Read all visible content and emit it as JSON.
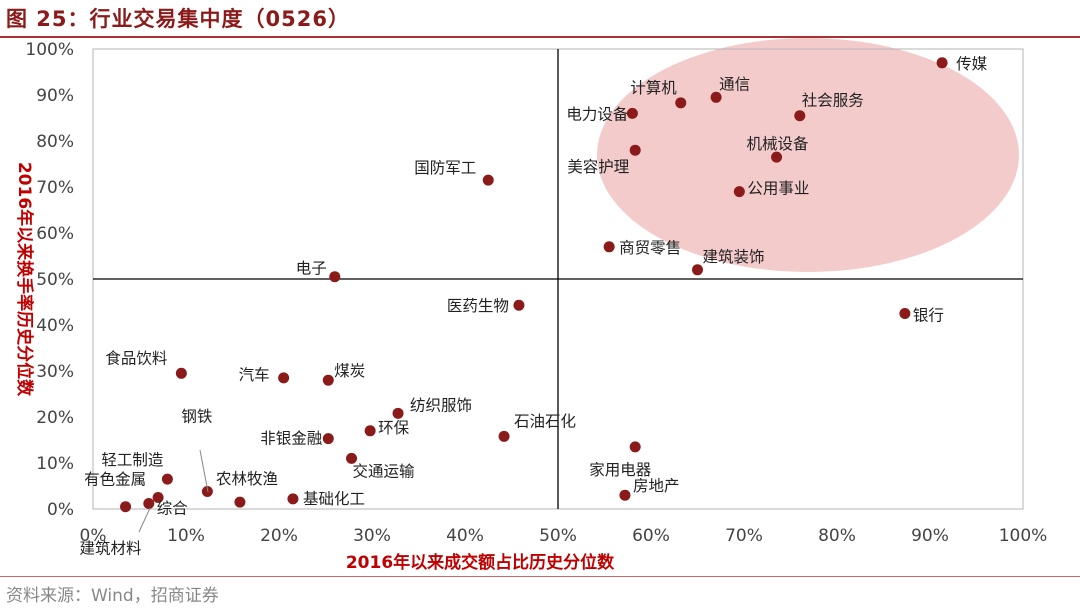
{
  "figure": {
    "title": "图 25：行业交易集中度（0526）",
    "source": "资料来源：Wind，招商证券",
    "highlight_color": "#f2c2c2",
    "point_color": "#8b1a1a",
    "axis_label_color": "#c00000"
  },
  "chart_data": {
    "type": "scatter",
    "xlabel": "2016年以来成交额占比历史分位数",
    "ylabel": "2016年以来换手率历史分位数",
    "xlim": [
      0,
      100
    ],
    "ylim": [
      0,
      100
    ],
    "x_ticks": [
      "0%",
      "10%",
      "20%",
      "30%",
      "40%",
      "50%",
      "60%",
      "70%",
      "80%",
      "90%",
      "100%"
    ],
    "y_ticks": [
      "0%",
      "10%",
      "20%",
      "30%",
      "40%",
      "50%",
      "60%",
      "70%",
      "80%",
      "90%",
      "100%"
    ],
    "quadrant_divider": {
      "x": 50,
      "y": 50
    },
    "grid": false,
    "points": [
      {
        "name": "传媒",
        "x": 91.3,
        "y": 97.0
      },
      {
        "name": "通信",
        "x": 67.0,
        "y": 89.5
      },
      {
        "name": "计算机",
        "x": 63.2,
        "y": 88.3
      },
      {
        "name": "电力设备",
        "x": 58.0,
        "y": 86.0
      },
      {
        "name": "社会服务",
        "x": 76.0,
        "y": 85.5
      },
      {
        "name": "美容护理",
        "x": 58.3,
        "y": 78.0
      },
      {
        "name": "机械设备",
        "x": 73.5,
        "y": 76.5
      },
      {
        "name": "国防军工",
        "x": 42.5,
        "y": 71.5
      },
      {
        "name": "公用事业",
        "x": 69.5,
        "y": 69.0
      },
      {
        "name": "商贸零售",
        "x": 55.5,
        "y": 57.0
      },
      {
        "name": "建筑装饰",
        "x": 65.0,
        "y": 52.0
      },
      {
        "name": "电子",
        "x": 26.0,
        "y": 50.5
      },
      {
        "name": "医药生物",
        "x": 45.8,
        "y": 44.3
      },
      {
        "name": "银行",
        "x": 87.3,
        "y": 42.5
      },
      {
        "name": "食品饮料",
        "x": 9.5,
        "y": 29.5
      },
      {
        "name": "汽车",
        "x": 20.5,
        "y": 28.5
      },
      {
        "name": "煤炭",
        "x": 25.3,
        "y": 28.0
      },
      {
        "name": "纺织服饰",
        "x": 32.8,
        "y": 20.8
      },
      {
        "name": "环保",
        "x": 29.8,
        "y": 17.0
      },
      {
        "name": "非银金融",
        "x": 25.3,
        "y": 15.3
      },
      {
        "name": "石油石化",
        "x": 44.2,
        "y": 15.8
      },
      {
        "name": "家用电器",
        "x": 58.3,
        "y": 13.5
      },
      {
        "name": "交通运输",
        "x": 27.8,
        "y": 11.0
      },
      {
        "name": "轻工制造",
        "x": 8.0,
        "y": 6.5
      },
      {
        "name": "钢铁",
        "x": 12.3,
        "y": 3.8
      },
      {
        "name": "房地产",
        "x": 57.2,
        "y": 3.0
      },
      {
        "name": "有色金属",
        "x": 7.0,
        "y": 2.5
      },
      {
        "name": "基础化工",
        "x": 21.5,
        "y": 2.2
      },
      {
        "name": "农林牧渔",
        "x": 15.8,
        "y": 1.5
      },
      {
        "name": "综合",
        "x": 6.0,
        "y": 1.2
      },
      {
        "name": "建筑材料",
        "x": 3.5,
        "y": 0.5
      }
    ]
  }
}
